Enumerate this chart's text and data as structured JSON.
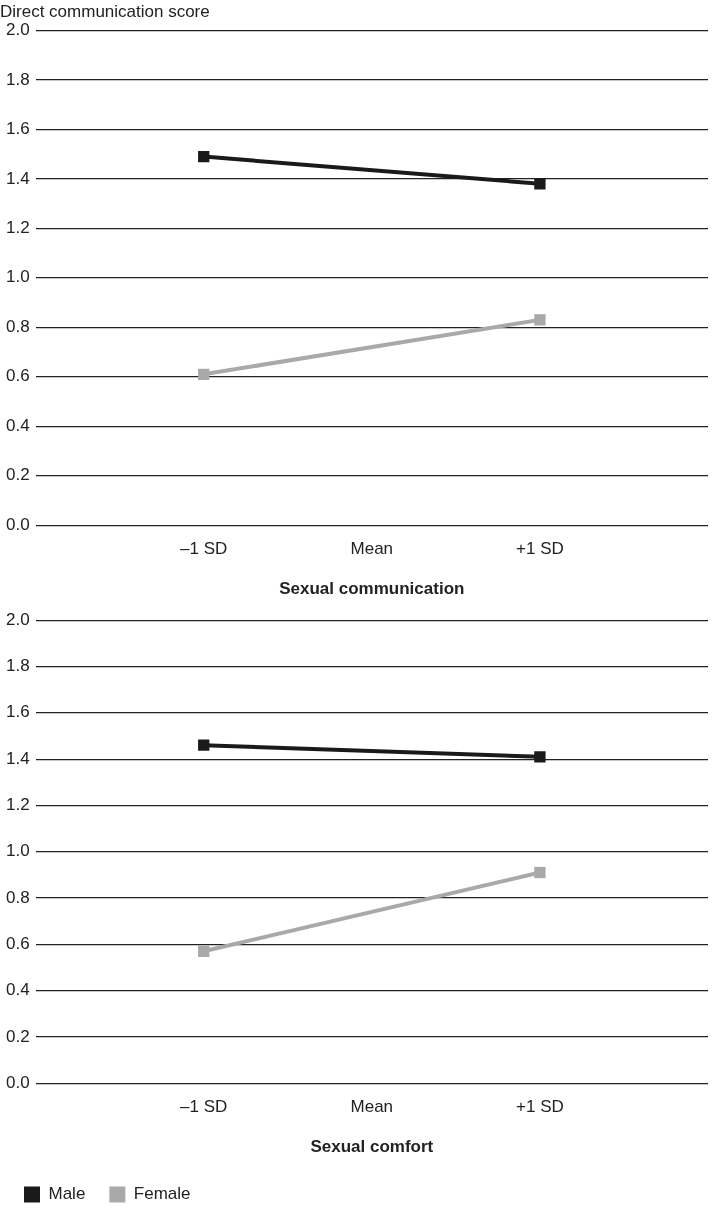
{
  "chart_data": [
    {
      "type": "line",
      "ylabel": "Direct communication score",
      "xlabel": "Sexual communication",
      "categories": [
        null,
        "–1 SD",
        "Mean",
        "+1 SD",
        null
      ],
      "series": [
        {
          "color": "#1a1a1a",
          "x": [
            "–1 SD",
            "+1 SD"
          ],
          "values": [
            1.49,
            1.38
          ]
        },
        {
          "color": "#a9a9a9",
          "x": [
            "–1 SD",
            "+1 SD"
          ],
          "values": [
            0.61,
            0.83
          ]
        }
      ],
      "ylim": [
        0,
        2
      ],
      "yticks": [
        {
          "value": 0,
          "label": "0.0"
        },
        {
          "value": 0.2,
          "label": "0.2"
        },
        {
          "value": 0.4,
          "label": "0.4"
        },
        {
          "value": 0.6,
          "label": "0.6"
        },
        {
          "value": 0.8,
          "label": "0.8"
        },
        {
          "value": 1,
          "label": "1.0"
        },
        {
          "value": 1.2,
          "label": "1.2"
        },
        {
          "value": 1.4,
          "label": "1.4"
        },
        {
          "value": 1.6,
          "label": "1.6"
        },
        {
          "value": 1.8,
          "label": "1.8"
        },
        {
          "value": 2,
          "label": "2.0"
        }
      ],
      "grid": "y",
      "marker": "square",
      "line_style": "solid",
      "legend": false
    },
    {
      "type": "line",
      "xlabel": "Sexual comfort",
      "categories": [
        null,
        "–1 SD",
        "Mean",
        "+1 SD",
        null
      ],
      "series": [
        {
          "name": "Male",
          "color": "#1a1a1a",
          "x": [
            "–1 SD",
            "+1 SD"
          ],
          "values": [
            1.46,
            1.41
          ]
        },
        {
          "name": "Female",
          "color": "#a9a9a9",
          "x": [
            "–1 SD",
            "+1 SD"
          ],
          "values": [
            0.57,
            0.91
          ]
        }
      ],
      "ylim": [
        0,
        2
      ],
      "yticks": [
        {
          "value": 0,
          "label": "0.0"
        },
        {
          "value": 0.2,
          "label": "0.2"
        },
        {
          "value": 0.4,
          "label": "0.4"
        },
        {
          "value": 0.6,
          "label": "0.6"
        },
        {
          "value": 0.8,
          "label": "0.8"
        },
        {
          "value": 1,
          "label": "1.0"
        },
        {
          "value": 1.2,
          "label": "1.2"
        },
        {
          "value": 1.4,
          "label": "1.4"
        },
        {
          "value": 1.6,
          "label": "1.6"
        },
        {
          "value": 1.8,
          "label": "1.8"
        },
        {
          "value": 2,
          "label": "2.0"
        }
      ],
      "grid": "y",
      "marker": "square",
      "line_style": "solid",
      "legend": "bottom left"
    }
  ]
}
